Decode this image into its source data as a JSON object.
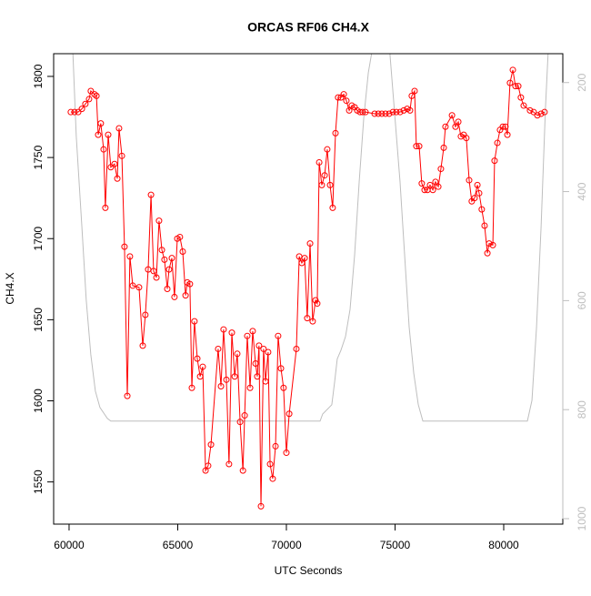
{
  "chart_data": {
    "type": "line",
    "title": "ORCAS RF06 CH4.X",
    "x_label": "UTC Seconds",
    "y_label": "CH4.X",
    "xlim": [
      59290,
      82720
    ],
    "xticks": [
      60000,
      65000,
      70000,
      75000,
      80000
    ],
    "ylim": [
      1524,
      1814
    ],
    "yticks": [
      1550,
      1600,
      1650,
      1700,
      1750,
      1800
    ],
    "y2lim": [
      1010,
      147
    ],
    "y2ticks": [
      200,
      400,
      600,
      800,
      1000
    ],
    "y2_color": "#bebebe",
    "series": [
      {
        "color": "#bebebe",
        "markers": false,
        "axis": "y2",
        "x": [
          60170,
          60330,
          60590,
          60790,
          61000,
          61210,
          61420,
          61760,
          61920,
          71550,
          71670,
          72090,
          72220,
          72340,
          72510,
          72720,
          72930,
          73140,
          73350,
          73560,
          73770,
          73950,
          74750,
          75230,
          75440,
          75650,
          75860,
          76070,
          76280,
          81090,
          81300,
          81510,
          81720,
          81920,
          82050
        ],
        "values": [
          140,
          298,
          465,
          599,
          699,
          766,
          796,
          816,
          821,
          821,
          808,
          791,
          749,
          707,
          691,
          666,
          616,
          516,
          382,
          265,
          182,
          140,
          140,
          382,
          516,
          649,
          733,
          791,
          821,
          821,
          783,
          649,
          465,
          248,
          140
        ]
      },
      {
        "color": "#ff0000",
        "markers": true,
        "x": [
          60080,
          60250,
          60420,
          60590,
          60750,
          60920,
          61000,
          61170,
          61260,
          61340,
          61460,
          61590,
          61670,
          61800,
          61920,
          62090,
          62220,
          62300,
          62430,
          62550,
          62680,
          62800,
          62930,
          63220,
          63390,
          63510,
          63640,
          63770,
          63890,
          64020,
          64140,
          64270,
          64390,
          64520,
          64600,
          64730,
          64850,
          64980,
          65100,
          65230,
          65360,
          65440,
          65560,
          65650,
          65770,
          65900,
          66030,
          66150,
          66280,
          66400,
          66530,
          66860,
          66990,
          67110,
          67240,
          67360,
          67490,
          67620,
          67740,
          67870,
          68000,
          68080,
          68200,
          68330,
          68450,
          68580,
          68660,
          68740,
          68830,
          68950,
          69040,
          69160,
          69250,
          69370,
          69500,
          69620,
          69750,
          69870,
          70000,
          70130,
          70460,
          70590,
          70710,
          70840,
          70960,
          71090,
          71210,
          71340,
          71420,
          71510,
          71630,
          71760,
          71880,
          72010,
          72130,
          72260,
          72380,
          72510,
          72640,
          72760,
          72890,
          73010,
          73140,
          73260,
          73390,
          73510,
          73640,
          74060,
          74230,
          74390,
          74560,
          74730,
          74900,
          75060,
          75230,
          75400,
          75560,
          75690,
          75770,
          75900,
          75980,
          76110,
          76230,
          76360,
          76490,
          76610,
          76740,
          76860,
          76990,
          77110,
          77240,
          77320,
          77620,
          77780,
          77910,
          78030,
          78160,
          78280,
          78410,
          78530,
          78660,
          78790,
          78870,
          78990,
          79120,
          79250,
          79330,
          79500,
          79580,
          79710,
          79830,
          79960,
          80080,
          80170,
          80290,
          80420,
          80540,
          80670,
          80790,
          80920,
          81210,
          81380,
          81550,
          81720,
          81880
        ],
        "values": [
          1778,
          1778,
          1778,
          1780,
          1783,
          1786,
          1791,
          1789,
          1788,
          1764,
          1771,
          1755,
          1719,
          1764,
          1744,
          1746,
          1737,
          1768,
          1751,
          1695,
          1603,
          1689,
          1671,
          1670,
          1634,
          1653,
          1681,
          1727,
          1680,
          1676,
          1711,
          1693,
          1687,
          1669,
          1681,
          1688,
          1664,
          1700,
          1701,
          1692,
          1665,
          1673,
          1672,
          1608,
          1649,
          1626,
          1615,
          1621,
          1557,
          1560,
          1573,
          1632,
          1609,
          1644,
          1613,
          1561,
          1642,
          1615,
          1629,
          1587,
          1557,
          1591,
          1640,
          1608,
          1643,
          1623,
          1615,
          1634,
          1535,
          1632,
          1612,
          1630,
          1561,
          1552,
          1572,
          1640,
          1620,
          1608,
          1568,
          1592,
          1632,
          1689,
          1685,
          1688,
          1651,
          1697,
          1649,
          1662,
          1660,
          1747,
          1733,
          1739,
          1755,
          1733,
          1719,
          1765,
          1787,
          1787,
          1789,
          1785,
          1779,
          1782,
          1781,
          1779,
          1778,
          1778,
          1778,
          1777,
          1777,
          1777,
          1777,
          1777,
          1778,
          1778,
          1778,
          1779,
          1780,
          1779,
          1788,
          1791,
          1757,
          1757,
          1734,
          1730,
          1730,
          1733,
          1730,
          1735,
          1732,
          1743,
          1756,
          1769,
          1776,
          1769,
          1772,
          1763,
          1764,
          1762,
          1736,
          1723,
          1725,
          1733,
          1728,
          1718,
          1708,
          1691,
          1697,
          1696,
          1748,
          1759,
          1767,
          1769,
          1769,
          1764,
          1796,
          1804,
          1794,
          1794,
          1787,
          1782,
          1779,
          1778,
          1776,
          1777,
          1778
        ]
      }
    ]
  }
}
